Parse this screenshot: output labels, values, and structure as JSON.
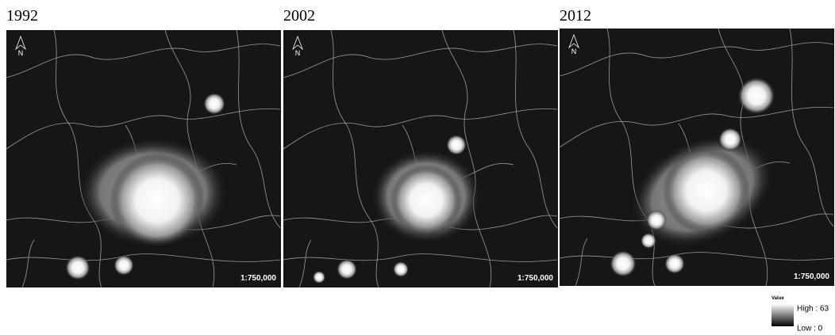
{
  "panels": [
    {
      "year": "1992",
      "scale": "1:750,000",
      "north": "N"
    },
    {
      "year": "2002",
      "scale": "1:750,000",
      "north": "N"
    },
    {
      "year": "2012",
      "scale": "1:750,000",
      "north": "N"
    }
  ],
  "legend": {
    "title": "Value",
    "high": "High : 63",
    "low": "Low : 0"
  }
}
